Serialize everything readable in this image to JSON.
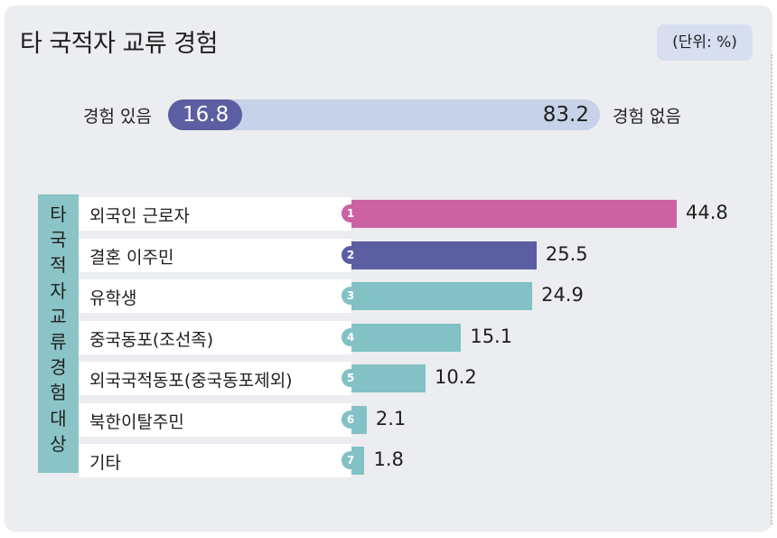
{
  "title": "타 국적자 교류 경험",
  "unit": "(단위: %)",
  "experience": {
    "yes_label": "경험 있음",
    "yes_value": "16.8",
    "no_value": "83.2",
    "no_label": "경험 없음",
    "yes_color": "#5b5ea0",
    "track_color": "#c6d2e7"
  },
  "vertical_label": [
    "타",
    "국",
    "적",
    "자",
    "교",
    "류",
    "경",
    "험",
    "대",
    "상"
  ],
  "chart_data": {
    "type": "bar",
    "orientation": "horizontal",
    "title": "타 국적자 교류 경험",
    "ylabel": "타 국적자 교류 경험 대상",
    "unit": "%",
    "xlim": [
      0,
      50
    ],
    "categories": [
      "외국인 근로자",
      "결혼 이주민",
      "유학생",
      "중국동포(조선족)",
      "외국국적동포(중국동포제외)",
      "북한이탈주민",
      "기타"
    ],
    "ranks": [
      "1",
      "2",
      "3",
      "4",
      "5",
      "6",
      "7"
    ],
    "values": [
      44.8,
      25.5,
      24.9,
      15.1,
      10.2,
      2.1,
      1.8
    ],
    "colors": [
      "#cc62a2",
      "#5b5ea0",
      "#82c1c5",
      "#82c1c5",
      "#82c1c5",
      "#82c1c5",
      "#82c1c5"
    ]
  }
}
